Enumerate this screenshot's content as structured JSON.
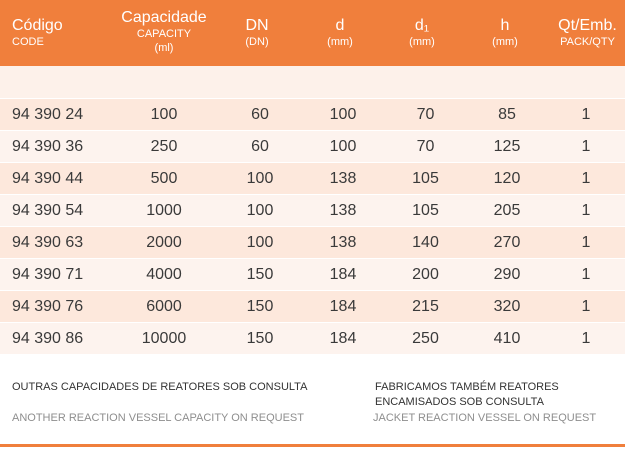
{
  "header": {
    "columns": [
      {
        "main": "Código",
        "sub": "CODE"
      },
      {
        "main": "Capacidade",
        "sub": "CAPACITY",
        "sub2": "(ml)"
      },
      {
        "main": "DN",
        "sub": "(DN)"
      },
      {
        "main": "d",
        "sub": "(mm)"
      },
      {
        "main": "d₁",
        "sub": "(mm)"
      },
      {
        "main": "h",
        "sub": "(mm)"
      },
      {
        "main": "Qt/Emb.",
        "sub": "PACK/QTY"
      }
    ]
  },
  "rows": [
    [
      "94 390 24",
      "100",
      "60",
      "100",
      "70",
      "85",
      "1"
    ],
    [
      "94 390 36",
      "250",
      "60",
      "100",
      "70",
      "125",
      "1"
    ],
    [
      "94 390 44",
      "500",
      "100",
      "138",
      "105",
      "120",
      "1"
    ],
    [
      "94 390 54",
      "1000",
      "100",
      "138",
      "105",
      "205",
      "1"
    ],
    [
      "94 390 63",
      "2000",
      "100",
      "138",
      "140",
      "270",
      "1"
    ],
    [
      "94 390 71",
      "4000",
      "150",
      "184",
      "200",
      "290",
      "1"
    ],
    [
      "94 390 76",
      "6000",
      "150",
      "184",
      "215",
      "320",
      "1"
    ],
    [
      "94 390 86",
      "10000",
      "150",
      "184",
      "250",
      "410",
      "1"
    ]
  ],
  "notes": {
    "left_pt": "OUTRAS CAPACIDADES DE REATORES SOB CONSULTA",
    "left_en": "ANOTHER REACTION VESSEL CAPACITY ON REQUEST",
    "right_pt_1": "FABRICAMOS TAMBÉM REATORES",
    "right_pt_2": "ENCAMISADOS SOB CONSULTA",
    "right_en": "JACKET REACTION VESSEL ON REQUEST"
  },
  "colors": {
    "accent": "#f07f3c",
    "row_a": "#fde8dc",
    "row_b": "#fdf3ee"
  }
}
